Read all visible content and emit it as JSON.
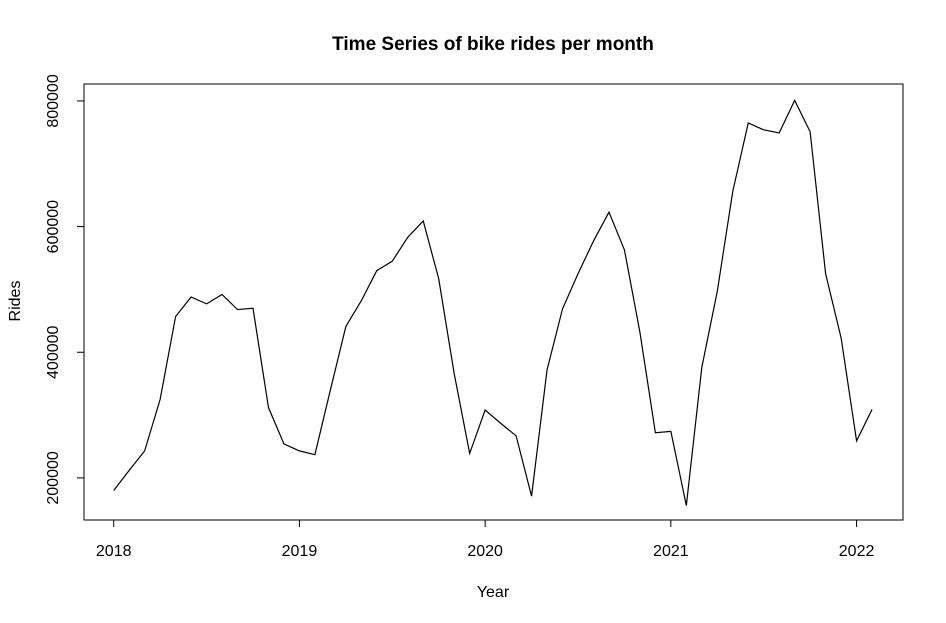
{
  "chart_data": {
    "type": "line",
    "title": "Time Series of bike rides per month",
    "xlabel": "Year",
    "ylabel": "Rides",
    "x_unit": "year",
    "xlim": [
      2017.84,
      2022.25
    ],
    "ylim": [
      133000,
      827000
    ],
    "x_ticks": [
      2018,
      2019,
      2020,
      2021,
      2022
    ],
    "y_ticks": [
      200000,
      400000,
      600000,
      800000
    ],
    "grid": false,
    "legend": "none",
    "line_color": "#000000",
    "series": [
      {
        "start": [
          2018,
          1
        ],
        "frequency": 12,
        "values": [
          180000,
          212000,
          243000,
          325000,
          457000,
          488000,
          477000,
          492000,
          468000,
          470000,
          312000,
          254000,
          243000,
          237000,
          340000,
          441000,
          482000,
          530000,
          545000,
          583000,
          609000,
          517000,
          366000,
          239000,
          308000,
          287000,
          267000,
          171000,
          372000,
          469000,
          525000,
          577000,
          623000,
          563000,
          432000,
          272000,
          274000,
          156000,
          376000,
          497000,
          656000,
          765000,
          754000,
          749000,
          801000,
          751000,
          525000,
          423000,
          259000,
          309000
        ]
      }
    ]
  }
}
